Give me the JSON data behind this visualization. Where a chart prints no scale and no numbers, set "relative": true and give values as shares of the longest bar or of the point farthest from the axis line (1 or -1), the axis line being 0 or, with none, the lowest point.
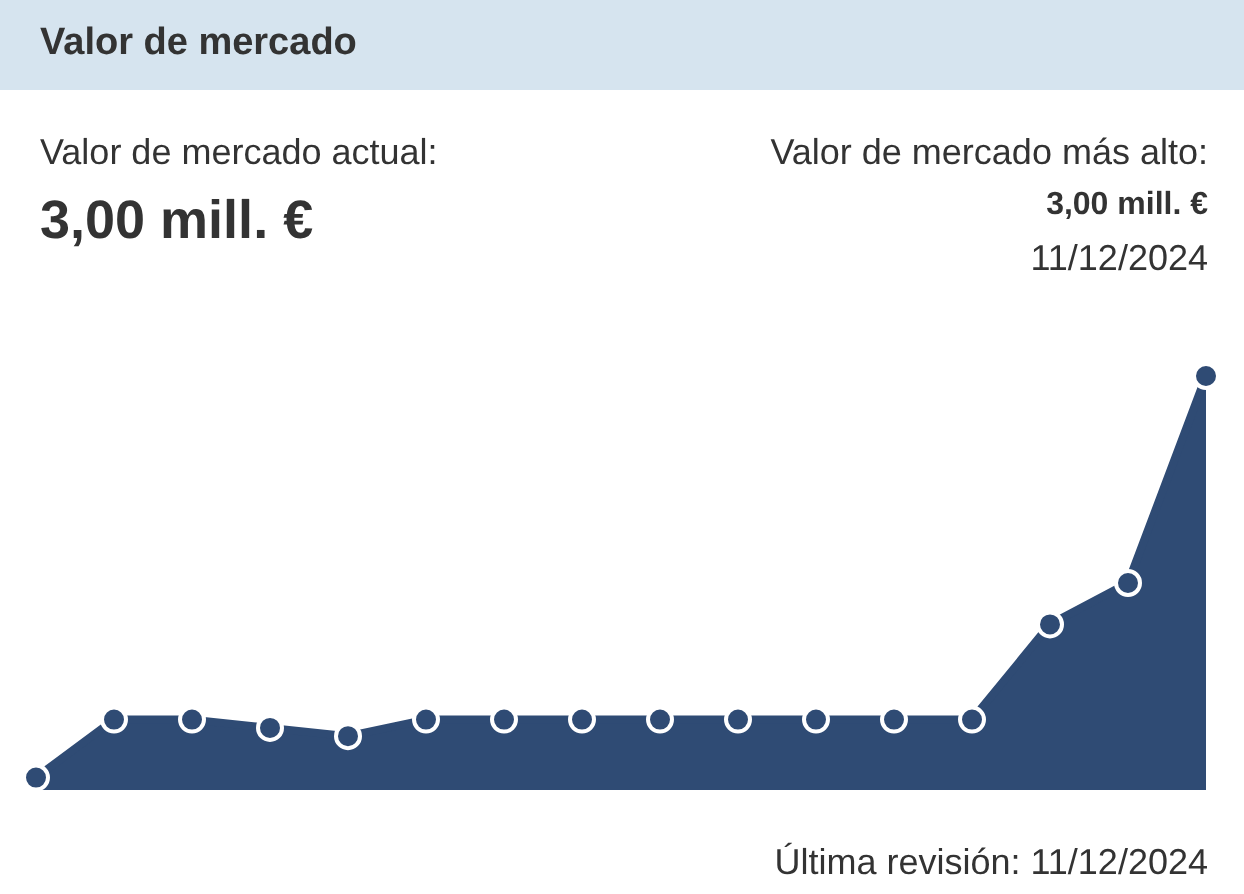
{
  "chart_data": {
    "type": "area",
    "title": "Valor de mercado",
    "categories": [
      null,
      null,
      null,
      null,
      null,
      null,
      null,
      null,
      null,
      null,
      null,
      null,
      null,
      null,
      null,
      null
    ],
    "values": [
      0.03,
      0.17,
      0.17,
      0.15,
      0.13,
      0.17,
      0.17,
      0.17,
      0.17,
      0.17,
      0.17,
      0.17,
      0.17,
      0.4,
      0.5,
      1
    ],
    "color": "#2f4b74",
    "relative": true,
    "marker": "circle",
    "annotations": [
      "Valor de mercado actual:",
      "3,00 mill. €",
      "Valor de mercado más alto:",
      "3,00 mill. €",
      "11/12/2024",
      "Última revisión: 11/12/2024"
    ]
  }
}
